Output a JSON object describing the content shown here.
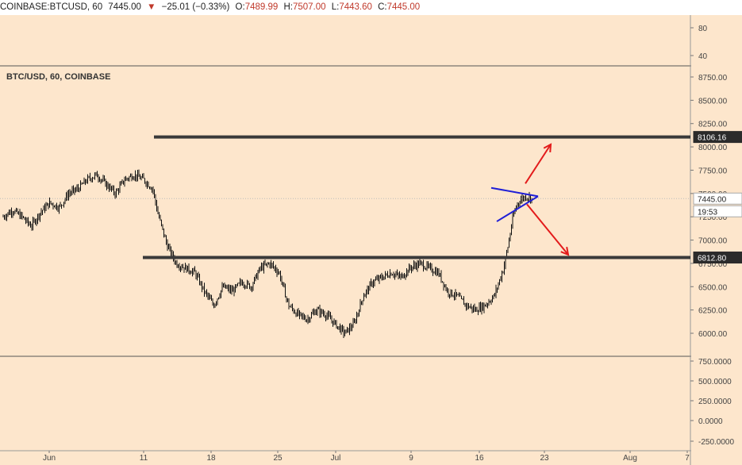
{
  "header": {
    "symbol": "COINBASE:BTCUSD, 60",
    "last": "7445.00",
    "change": "−25.01 (−0.33%)",
    "o_label": "O:",
    "o": "7489.99",
    "h_label": "H:",
    "h": "7507.00",
    "l_label": "L:",
    "l": "7443.60",
    "c_label": "C:",
    "c": "7445.00"
  },
  "chart_title": "BTC/USD, 60, COINBASE",
  "colors": {
    "background": "#fde6cc",
    "candle": "#000000",
    "level_line": "#3a3a3a",
    "triangle": "#1f1fd6",
    "arrows": "#e31b1b"
  },
  "icons": {
    "down_arrow": "down-triangle-icon"
  },
  "chart_data": {
    "type": "candlestick",
    "title": "BTC/USD, 60, COINBASE",
    "price_axis": {
      "ylim": [
        5770,
        8900
      ],
      "ticks": [
        "8750.00",
        "8500.00",
        "8250.00",
        "8000.00",
        "7750.00",
        "7500.00",
        "7250.00",
        "7000.00",
        "6750.00",
        "6500.00",
        "6250.00",
        "6000.00"
      ],
      "badges": [
        {
          "label": "8106.16",
          "value": 8106.16,
          "style": "dark"
        },
        {
          "label": "7445.00",
          "value": 7445,
          "style": "light"
        },
        {
          "label": "19:53",
          "value": 7350,
          "style": "light"
        },
        {
          "label": "6812.80",
          "value": 6812.8,
          "style": "dark"
        }
      ]
    },
    "top_pane_ticks": [
      "80",
      "40"
    ],
    "bottom_pane_ticks": [
      "750.0000",
      "500.0000",
      "250.0000",
      "0.0000",
      "-250.0000"
    ],
    "x_labels": [
      "Jun",
      "11",
      "18",
      "25",
      "Jul",
      "9",
      "16",
      "23",
      "Aug",
      "7"
    ],
    "price_path": [
      [
        0,
        7250
      ],
      [
        2,
        7320
      ],
      [
        4,
        7250
      ],
      [
        6,
        7150
      ],
      [
        8,
        7300
      ],
      [
        10,
        7400
      ],
      [
        12,
        7350
      ],
      [
        14,
        7500
      ],
      [
        16,
        7550
      ],
      [
        18,
        7650
      ],
      [
        20,
        7700
      ],
      [
        22,
        7600
      ],
      [
        24,
        7500
      ],
      [
        26,
        7650
      ],
      [
        28,
        7700
      ],
      [
        30,
        7650
      ],
      [
        32,
        7550
      ],
      [
        33,
        7300
      ],
      [
        35,
        6950
      ],
      [
        37,
        6750
      ],
      [
        39,
        6700
      ],
      [
        41,
        6650
      ],
      [
        43,
        6450
      ],
      [
        45,
        6300
      ],
      [
        47,
        6500
      ],
      [
        49,
        6450
      ],
      [
        51,
        6550
      ],
      [
        53,
        6500
      ],
      [
        55,
        6700
      ],
      [
        57,
        6750
      ],
      [
        59,
        6650
      ],
      [
        61,
        6300
      ],
      [
        63,
        6200
      ],
      [
        65,
        6150
      ],
      [
        67,
        6250
      ],
      [
        69,
        6200
      ],
      [
        71,
        6100
      ],
      [
        73,
        6000
      ],
      [
        75,
        6100
      ],
      [
        77,
        6400
      ],
      [
        79,
        6550
      ],
      [
        81,
        6600
      ],
      [
        83,
        6650
      ],
      [
        85,
        6600
      ],
      [
        87,
        6700
      ],
      [
        89,
        6750
      ],
      [
        91,
        6700
      ],
      [
        93,
        6650
      ],
      [
        95,
        6450
      ],
      [
        97,
        6400
      ],
      [
        99,
        6300
      ],
      [
        101,
        6250
      ],
      [
        103,
        6300
      ],
      [
        105,
        6400
      ],
      [
        107,
        6700
      ],
      [
        108,
        6950
      ],
      [
        109,
        7250
      ],
      [
        110,
        7400
      ],
      [
        111,
        7450
      ],
      [
        112,
        7470
      ],
      [
        113,
        7445
      ]
    ],
    "price_x_range": [
      0,
      113
    ],
    "horizontal_levels": [
      {
        "value": 8106.16,
        "from_label_index": 1
      },
      {
        "value": 6812.8,
        "from_label_index": 1
      }
    ],
    "triangle_pattern": {
      "top_left": 7560,
      "bottom_left": 7200,
      "apex": 7470
    },
    "arrows": [
      {
        "direction": "up"
      },
      {
        "direction": "down"
      }
    ]
  }
}
